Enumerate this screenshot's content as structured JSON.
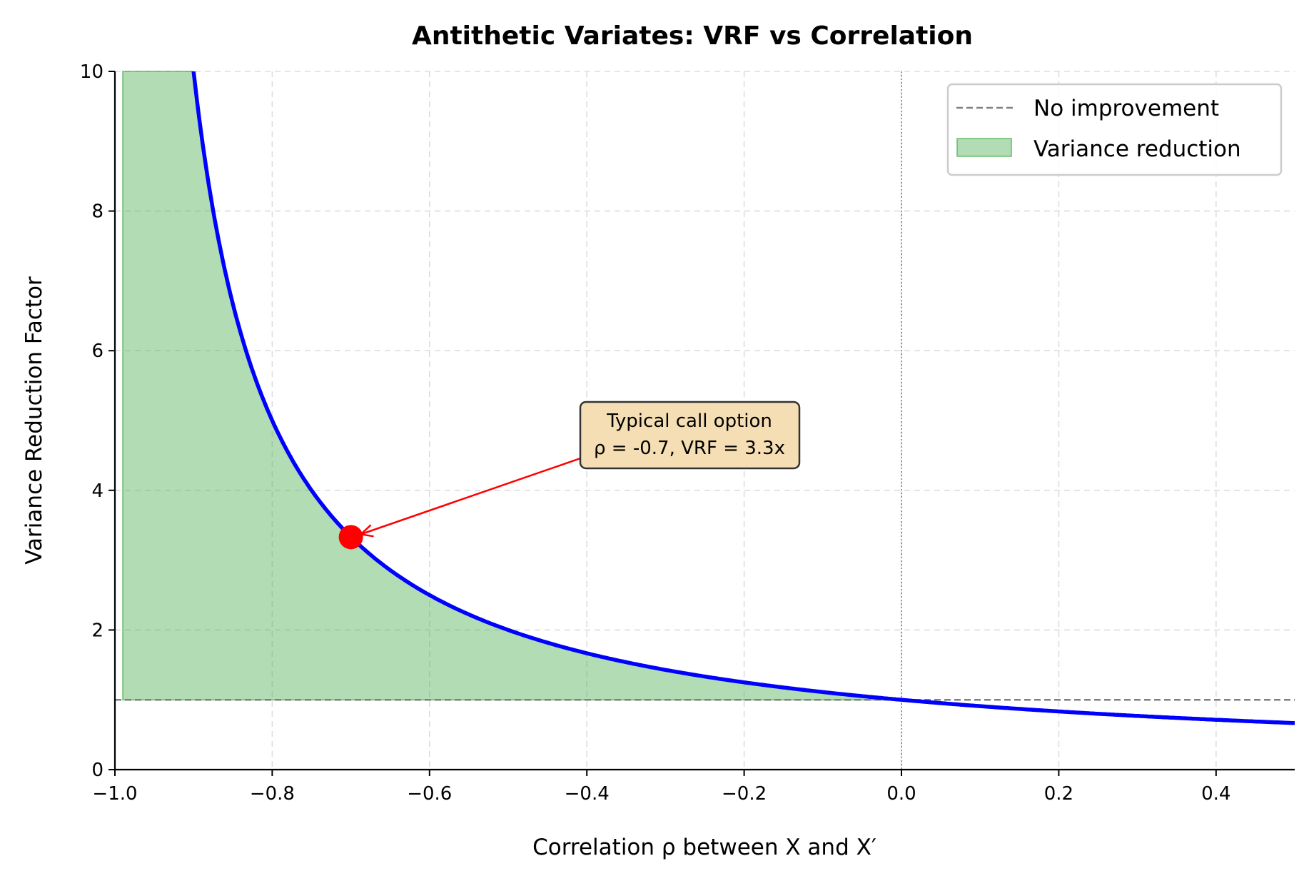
{
  "chart_data": {
    "type": "line",
    "title": "Antithetic Variates: VRF vs Correlation",
    "xlabel": "Correlation ρ between X and X′",
    "ylabel": "Variance Reduction Factor",
    "xlim": [
      -1.0,
      0.5
    ],
    "ylim": [
      0,
      10
    ],
    "xticks": [
      "−1.0",
      "−0.8",
      "−0.6",
      "−0.4",
      "−0.2",
      "0.0",
      "0.2",
      "0.4"
    ],
    "xtick_values": [
      -1.0,
      -0.8,
      -0.6,
      -0.4,
      -0.2,
      0.0,
      0.2,
      0.4
    ],
    "yticks": [
      "0",
      "2",
      "4",
      "6",
      "8",
      "10"
    ],
    "ytick_values": [
      0,
      2,
      4,
      6,
      8,
      10
    ],
    "grid": true,
    "series": [
      {
        "function": "VRF = 1/(1+ρ)",
        "x_range": [
          -0.99,
          0.5
        ],
        "color": "#0000ff"
      }
    ],
    "reference_lines": [
      {
        "name": "No improvement",
        "orientation": "horizontal",
        "value": 1,
        "color": "#808080",
        "style": "dashed"
      },
      {
        "orientation": "vertical",
        "value": 0,
        "color": "#808080",
        "style": "dotted"
      }
    ],
    "fill": {
      "name": "Variance reduction",
      "x_range": [
        -0.99,
        0.0
      ],
      "between": [
        "1",
        "VRF"
      ],
      "color": "#4caf50"
    },
    "highlight_point": {
      "x": -0.7,
      "y": 3.33,
      "color": "#ff0000"
    },
    "annotation": {
      "line1": "Typical call option",
      "line2": "ρ = -0.7, VRF = 3.3x",
      "text_x": -0.4,
      "text_y": 4.6,
      "box_color": "#f5deb3"
    },
    "legend": {
      "placement": "top-right",
      "entries": [
        "No improvement",
        "Variance reduction"
      ]
    }
  }
}
